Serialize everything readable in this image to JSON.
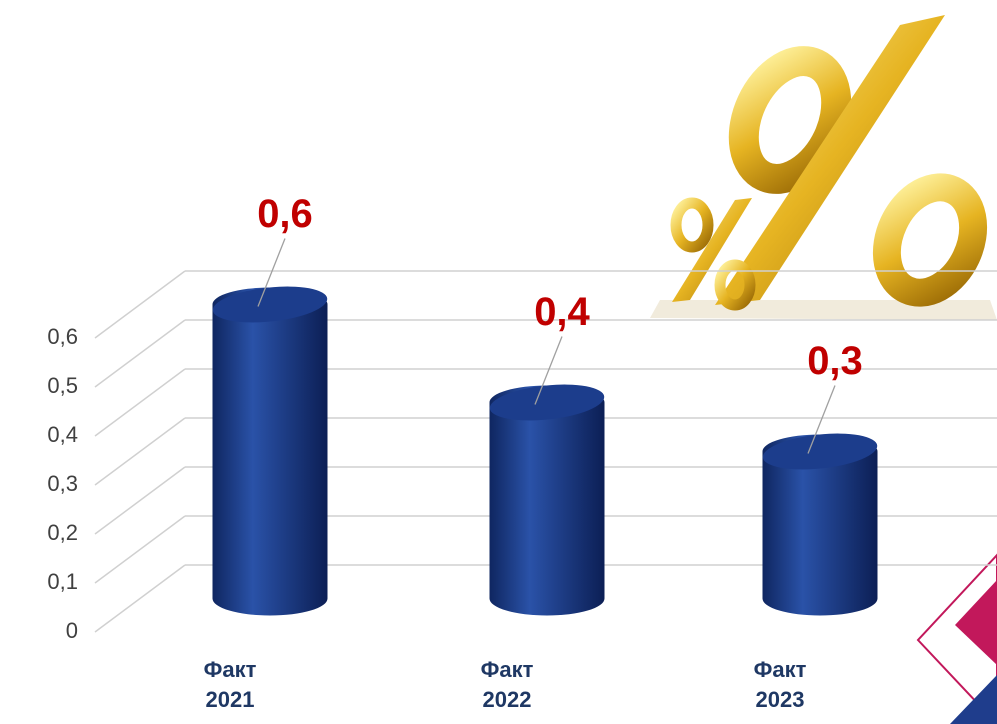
{
  "chart_data": {
    "type": "bar",
    "categories": [
      "Факт 2021",
      "Факт 2022",
      "Факт 2023"
    ],
    "values": [
      0.6,
      0.4,
      0.3
    ],
    "value_labels": [
      "0,6",
      "0,4",
      "0,3"
    ],
    "color": "#1c3d8c",
    "ylim": [
      0,
      0.6
    ],
    "yticks": [
      {
        "value": 0,
        "label": "0"
      },
      {
        "value": 0.1,
        "label": "0,1"
      },
      {
        "value": 0.2,
        "label": "0,2"
      },
      {
        "value": 0.3,
        "label": "0,3"
      },
      {
        "value": 0.4,
        "label": "0,4"
      },
      {
        "value": 0.5,
        "label": "0,5"
      },
      {
        "value": 0.6,
        "label": "0,6"
      }
    ],
    "grid": true
  }
}
